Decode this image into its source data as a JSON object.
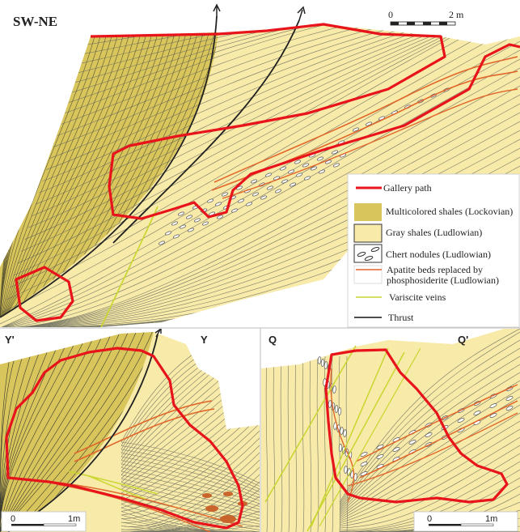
{
  "panels": {
    "top": {
      "label": "SW-NE",
      "scale": {
        "start": "0",
        "end": "2 m"
      }
    },
    "bottom_left": {
      "label_left": "Y'",
      "label_right": "Y",
      "scale": {
        "start": "0",
        "end": "1m"
      }
    },
    "bottom_right": {
      "label_left": "Q",
      "label_right": "Q'",
      "scale": {
        "start": "0",
        "end": "1m"
      }
    }
  },
  "legend": {
    "items": [
      {
        "label": "Gallery path",
        "symbol": "red-line"
      },
      {
        "label": "Multicolored shales (Lockovian)",
        "symbol": "dark-fill"
      },
      {
        "label": "Gray shales (Ludlowian)",
        "symbol": "light-fill"
      },
      {
        "label": "Chert nodules (Ludlowian)",
        "symbol": "ellipses"
      },
      {
        "label": "Apatite beds replaced by",
        "label2": "phosphosiderite (Ludlowian)",
        "symbol": "orange-line"
      },
      {
        "label": "Variscite veins",
        "symbol": "yellow-green-line"
      },
      {
        "label": "Thrust",
        "symbol": "black-line"
      }
    ]
  },
  "colors": {
    "gallery": "#e8141c",
    "multicolored_shales": "#d8c55c",
    "gray_shales": "#f8eaa8",
    "apatite": "#e0662a",
    "variscite": "#c8d630",
    "thrust": "#222222",
    "bedding": "#777766"
  }
}
